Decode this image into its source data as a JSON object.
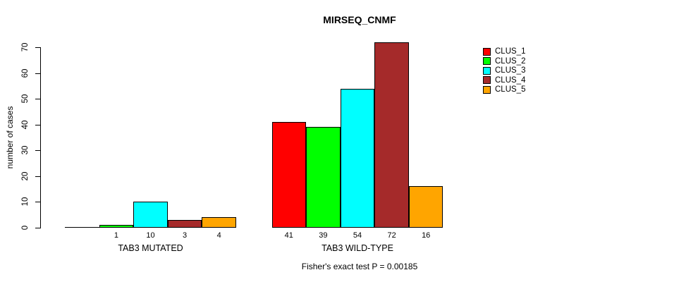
{
  "chart_data": {
    "type": "bar",
    "title": "MIRSEQ_CNMF",
    "ylabel": "number of cases",
    "xlabel": "",
    "yticks": [
      0,
      10,
      20,
      30,
      40,
      50,
      60,
      70
    ],
    "ylim": [
      0,
      72
    ],
    "grid": false,
    "legend_position": "right",
    "categories": [
      "TAB3 MUTATED",
      "TAB3 WILD-TYPE"
    ],
    "series": [
      {
        "name": "CLUS_1",
        "color": "#FF0000",
        "values": [
          0,
          41
        ]
      },
      {
        "name": "CLUS_2",
        "color": "#00FF00",
        "values": [
          1,
          39
        ]
      },
      {
        "name": "CLUS_3",
        "color": "#00FFFF",
        "values": [
          10,
          54
        ]
      },
      {
        "name": "CLUS_4",
        "color": "#A52A2A",
        "values": [
          3,
          72
        ]
      },
      {
        "name": "CLUS_5",
        "color": "#FFA500",
        "values": [
          4,
          16
        ]
      }
    ],
    "bar_labels": [
      [
        "",
        "1",
        "10",
        "3",
        "4"
      ],
      [
        "41",
        "39",
        "54",
        "72",
        "16"
      ]
    ],
    "footnote": "Fisher's exact test P = 0.00185"
  }
}
